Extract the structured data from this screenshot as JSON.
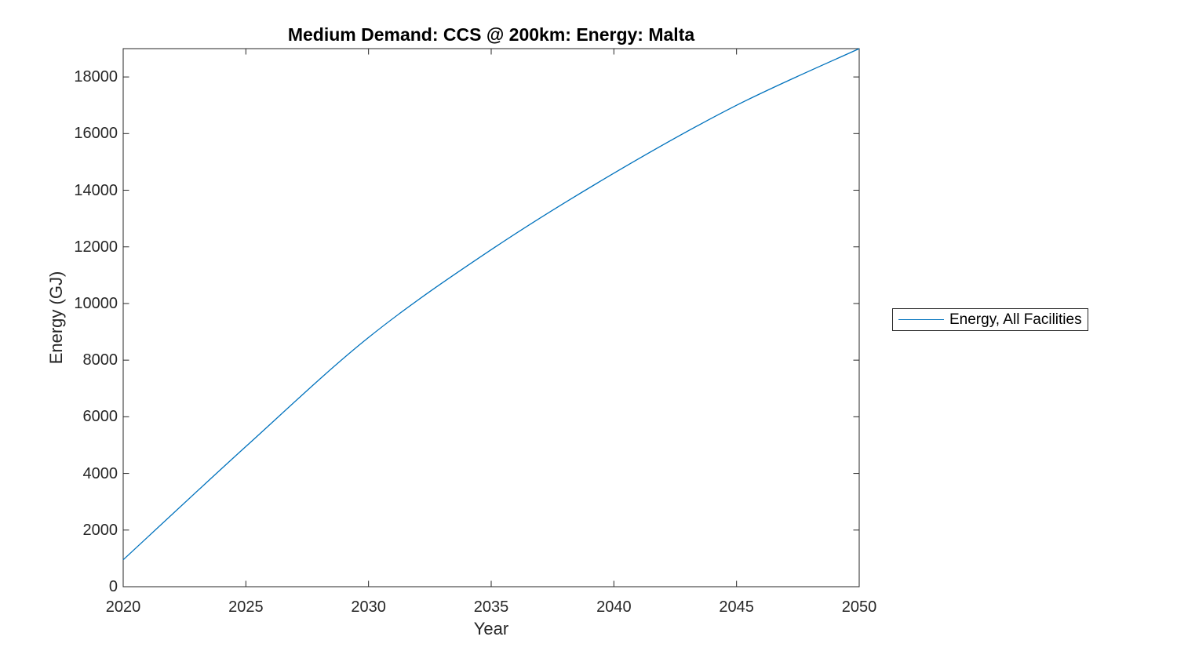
{
  "chart_data": {
    "type": "line",
    "title": "Medium Demand: CCS @ 200km: Energy: Malta",
    "xlabel": "Year",
    "ylabel": "Energy (GJ)",
    "xlim": [
      2020,
      2050
    ],
    "ylim": [
      0,
      19000
    ],
    "x_ticks": [
      2020,
      2025,
      2030,
      2035,
      2040,
      2045,
      2050
    ],
    "y_ticks": [
      0,
      2000,
      4000,
      6000,
      8000,
      10000,
      12000,
      14000,
      16000,
      18000
    ],
    "grid": false,
    "box": true,
    "tick_direction": "in",
    "legend": {
      "position": "outside-right",
      "entries": [
        {
          "label": "Energy, All Facilities",
          "color": "#0072BD"
        }
      ]
    },
    "series": [
      {
        "name": "Energy, All Facilities",
        "color": "#0072BD",
        "x": [
          2020,
          2025,
          2030,
          2035,
          2040,
          2045,
          2050
        ],
        "y": [
          950,
          4950,
          8800,
          11900,
          14600,
          17000,
          19000
        ]
      }
    ]
  },
  "colors": {
    "background": "#ffffff",
    "axis": "#262626",
    "line": "#0072BD",
    "title_text": "#000000"
  }
}
